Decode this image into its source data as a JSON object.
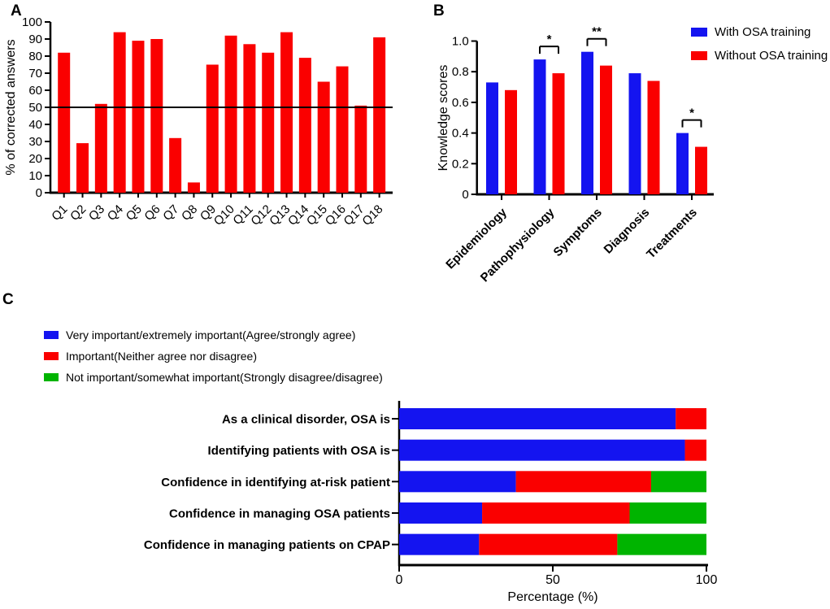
{
  "chart_data": [
    {
      "panel_letter": "A",
      "type": "bar",
      "title": "",
      "ylabel": "% of corrected answers",
      "ylim": [
        0,
        100
      ],
      "yticks": [
        0,
        10,
        20,
        30,
        40,
        50,
        60,
        70,
        80,
        90,
        100
      ],
      "ytick_labels": [
        "0",
        "10",
        "20",
        "30",
        "40",
        "50",
        "60",
        "70",
        "80",
        "90",
        "100"
      ],
      "reference_line": 50,
      "bar_color": "#fa0000",
      "categories": [
        "Q1",
        "Q2",
        "Q3",
        "Q4",
        "Q5",
        "Q6",
        "Q7",
        "Q8",
        "Q9",
        "Q10",
        "Q11",
        "Q12",
        "Q13",
        "Q14",
        "Q15",
        "Q16",
        "Q17",
        "Q18"
      ],
      "values": [
        82,
        29,
        52,
        94,
        89,
        90,
        32,
        6,
        75,
        92,
        87,
        82,
        94,
        79,
        65,
        74,
        51,
        91
      ]
    },
    {
      "panel_letter": "B",
      "type": "grouped-bar",
      "title": "",
      "ylabel": "Knowledge scores",
      "ylim": [
        0,
        1.0
      ],
      "yticks": [
        0,
        0.2,
        0.4,
        0.6,
        0.8,
        1.0
      ],
      "ytick_labels": [
        "0",
        "0.2",
        "0.4",
        "0.6",
        "0.8",
        "1.0"
      ],
      "categories": [
        "Epidemiology",
        "Pathophysiology",
        "Symptoms",
        "Diagnosis",
        "Treatments"
      ],
      "series": [
        {
          "name": "With OSA training",
          "color": "#1414f0",
          "values": [
            0.73,
            0.88,
            0.93,
            0.79,
            0.4
          ]
        },
        {
          "name": "Without OSA training",
          "color": "#fa0000",
          "values": [
            0.68,
            0.79,
            0.84,
            0.74,
            0.31
          ]
        }
      ],
      "significance": [
        {
          "category": "Pathophysiology",
          "label": "*"
        },
        {
          "category": "Symptoms",
          "label": "**"
        },
        {
          "category": "Treatments",
          "label": "*"
        }
      ],
      "legend_position": "top-right"
    },
    {
      "panel_letter": "C",
      "type": "stacked-horizontal-bar",
      "title": "",
      "xlabel": "Percentage (%)",
      "xlim": [
        0,
        100
      ],
      "xticks": [
        0,
        50,
        100
      ],
      "xtick_labels": [
        "0",
        "50",
        "100"
      ],
      "categories": [
        "As a clinical disorder, OSA is",
        "Identifying patients with OSA is",
        "Confidence in identifying at-risk patient",
        "Confidence in managing OSA patients",
        "Confidence in managing patients on CPAP"
      ],
      "series": [
        {
          "name": "Very important/extremely important(Agree/strongly agree)",
          "color": "#1414f0",
          "values": [
            90,
            93,
            38,
            27,
            26
          ]
        },
        {
          "name": "Important(Neither agree nor disagree)",
          "color": "#fa0000",
          "values": [
            10,
            7,
            44,
            48,
            45
          ]
        },
        {
          "name": "Not important/somewhat important(Strongly disagree/disagree)",
          "color": "#00b400",
          "values": [
            0,
            0,
            18,
            25,
            29
          ]
        }
      ],
      "legend_position": "top-left"
    }
  ],
  "colors": {
    "axis": "#000000",
    "blue": "#1414f0",
    "red": "#fa0000",
    "green": "#00b400"
  }
}
